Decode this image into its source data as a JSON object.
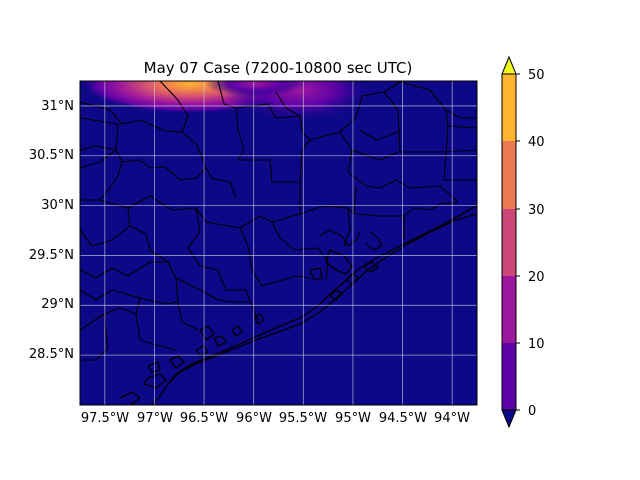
{
  "title": "May 07 Case (7200-10800 sec UTC)",
  "map": {
    "lon_range": [
      -97.75,
      -93.75
    ],
    "lat_range": [
      28.0,
      31.25
    ],
    "lon_ticks": [
      "97.5°W",
      "97°W",
      "96.5°W",
      "96°W",
      "95.5°W",
      "95°W",
      "94.5°W",
      "94°W"
    ],
    "lon_tick_values": [
      -97.5,
      -97.0,
      -96.5,
      -96.0,
      -95.5,
      -95.0,
      -94.5,
      -94.0
    ],
    "lat_ticks": [
      "28.5°N",
      "29°N",
      "29.5°N",
      "30°N",
      "30.5°N",
      "31°N"
    ],
    "lat_tick_values": [
      28.5,
      29.0,
      29.5,
      30.0,
      30.5,
      31.0
    ],
    "background_color": "#0d0887",
    "gridlines": true,
    "features": [
      "county boundaries",
      "coastline"
    ]
  },
  "colorbar": {
    "levels": [
      0,
      10,
      20,
      30,
      40,
      50
    ],
    "level_labels": [
      "0",
      "10",
      "20",
      "30",
      "40",
      "50"
    ],
    "colors": [
      "#5c01a6",
      "#9c179e",
      "#cc4778",
      "#ed7953",
      "#fdb42f"
    ],
    "under_color": "#0d0887",
    "over_color": "#f0f921",
    "extend": "both",
    "colormap": "plasma"
  },
  "hotspots": [
    {
      "lon": -96.5,
      "lat": 31.25,
      "level": "40-50"
    },
    {
      "lon": -95.6,
      "lat": 31.25,
      "level": "10-20"
    }
  ]
}
